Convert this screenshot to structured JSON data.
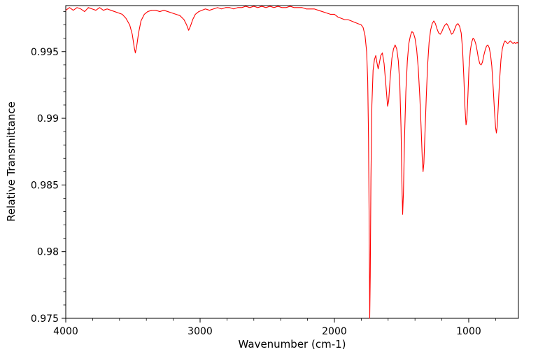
{
  "figure": {
    "background": "#ffffff",
    "spine_color": "#000000",
    "tick_label_color": "#000000"
  },
  "chart_data": {
    "type": "line",
    "title": "",
    "grid": false,
    "legend": false,
    "x_axis": {
      "label": "Wavenumber (cm-1)",
      "range": [
        4000,
        630
      ],
      "inverted": true,
      "major_ticks": [
        {
          "value": 4000,
          "label": "4000"
        },
        {
          "value": 3000,
          "label": "3000"
        },
        {
          "value": 2000,
          "label": "2000"
        },
        {
          "value": 1000,
          "label": "1000"
        }
      ],
      "minor_tick_step": 200
    },
    "y_axis": {
      "label": "Relative Transmittance",
      "range": [
        0.975,
        0.99845
      ],
      "major_ticks": [
        {
          "value": 0.975,
          "label": "0.975"
        },
        {
          "value": 0.98,
          "label": "0.98"
        },
        {
          "value": 0.985,
          "label": "0.985"
        },
        {
          "value": 0.99,
          "label": "0.99"
        },
        {
          "value": 0.995,
          "label": "0.995"
        }
      ],
      "minor_tick_step": 0.001
    },
    "series": [
      {
        "name": "IR spectrum",
        "color": "#ff0000",
        "line_width": 1.1,
        "points": [
          [
            4000,
            0.9981
          ],
          [
            3972,
            0.9983
          ],
          [
            3944,
            0.9981
          ],
          [
            3916,
            0.9983
          ],
          [
            3888,
            0.9982
          ],
          [
            3860,
            0.998
          ],
          [
            3832,
            0.9983
          ],
          [
            3804,
            0.9982
          ],
          [
            3776,
            0.9981
          ],
          [
            3748,
            0.9983
          ],
          [
            3720,
            0.9981
          ],
          [
            3692,
            0.9982
          ],
          [
            3664,
            0.9981
          ],
          [
            3636,
            0.998
          ],
          [
            3608,
            0.9979
          ],
          [
            3580,
            0.9978
          ],
          [
            3552,
            0.9975
          ],
          [
            3524,
            0.997
          ],
          [
            3505,
            0.9963
          ],
          [
            3490,
            0.9953
          ],
          [
            3482,
            0.9949
          ],
          [
            3472,
            0.9954
          ],
          [
            3458,
            0.9964
          ],
          [
            3440,
            0.9973
          ],
          [
            3415,
            0.9978
          ],
          [
            3390,
            0.998
          ],
          [
            3360,
            0.9981
          ],
          [
            3330,
            0.9981
          ],
          [
            3300,
            0.998
          ],
          [
            3270,
            0.9981
          ],
          [
            3240,
            0.998
          ],
          [
            3210,
            0.9979
          ],
          [
            3180,
            0.9978
          ],
          [
            3150,
            0.9977
          ],
          [
            3120,
            0.9974
          ],
          [
            3100,
            0.997
          ],
          [
            3085,
            0.9966
          ],
          [
            3072,
            0.9969
          ],
          [
            3055,
            0.9974
          ],
          [
            3035,
            0.9978
          ],
          [
            3010,
            0.998
          ],
          [
            2985,
            0.9981
          ],
          [
            2960,
            0.9982
          ],
          [
            2930,
            0.9981
          ],
          [
            2900,
            0.9982
          ],
          [
            2870,
            0.9983
          ],
          [
            2840,
            0.9982
          ],
          [
            2810,
            0.9983
          ],
          [
            2780,
            0.9983
          ],
          [
            2750,
            0.9982
          ],
          [
            2720,
            0.9983
          ],
          [
            2690,
            0.9983
          ],
          [
            2660,
            0.9984
          ],
          [
            2630,
            0.9983
          ],
          [
            2600,
            0.9984
          ],
          [
            2570,
            0.9983
          ],
          [
            2540,
            0.9984
          ],
          [
            2510,
            0.9983
          ],
          [
            2480,
            0.9984
          ],
          [
            2450,
            0.9983
          ],
          [
            2420,
            0.9984
          ],
          [
            2390,
            0.9983
          ],
          [
            2360,
            0.9983
          ],
          [
            2330,
            0.9984
          ],
          [
            2300,
            0.9983
          ],
          [
            2270,
            0.9983
          ],
          [
            2240,
            0.9983
          ],
          [
            2210,
            0.9982
          ],
          [
            2180,
            0.9982
          ],
          [
            2150,
            0.9982
          ],
          [
            2120,
            0.9981
          ],
          [
            2090,
            0.998
          ],
          [
            2060,
            0.9979
          ],
          [
            2030,
            0.9978
          ],
          [
            2000,
            0.9978
          ],
          [
            1975,
            0.9976
          ],
          [
            1950,
            0.9975
          ],
          [
            1925,
            0.9974
          ],
          [
            1900,
            0.9974
          ],
          [
            1875,
            0.9973
          ],
          [
            1850,
            0.9972
          ],
          [
            1825,
            0.9971
          ],
          [
            1800,
            0.997
          ],
          [
            1786,
            0.9968
          ],
          [
            1772,
            0.9962
          ],
          [
            1760,
            0.995
          ],
          [
            1752,
            0.9928
          ],
          [
            1746,
            0.9885
          ],
          [
            1741,
            0.982
          ],
          [
            1737,
            0.975
          ],
          [
            1733,
            0.9782
          ],
          [
            1728,
            0.9855
          ],
          [
            1721,
            0.991
          ],
          [
            1712,
            0.9936
          ],
          [
            1702,
            0.9944
          ],
          [
            1692,
            0.9947
          ],
          [
            1682,
            0.9941
          ],
          [
            1674,
            0.9937
          ],
          [
            1666,
            0.9941
          ],
          [
            1655,
            0.9947
          ],
          [
            1643,
            0.9949
          ],
          [
            1630,
            0.9941
          ],
          [
            1616,
            0.9924
          ],
          [
            1604,
            0.9909
          ],
          [
            1596,
            0.9913
          ],
          [
            1585,
            0.993
          ],
          [
            1572,
            0.9945
          ],
          [
            1560,
            0.9952
          ],
          [
            1548,
            0.9955
          ],
          [
            1536,
            0.9952
          ],
          [
            1524,
            0.9943
          ],
          [
            1513,
            0.9925
          ],
          [
            1504,
            0.9893
          ],
          [
            1497,
            0.985
          ],
          [
            1492,
            0.9828
          ],
          [
            1486,
            0.9844
          ],
          [
            1478,
            0.9885
          ],
          [
            1468,
            0.992
          ],
          [
            1457,
            0.9943
          ],
          [
            1446,
            0.9956
          ],
          [
            1434,
            0.9962
          ],
          [
            1423,
            0.9965
          ],
          [
            1412,
            0.9964
          ],
          [
            1400,
            0.996
          ],
          [
            1388,
            0.9952
          ],
          [
            1376,
            0.9938
          ],
          [
            1364,
            0.9916
          ],
          [
            1354,
            0.9892
          ],
          [
            1346,
            0.987
          ],
          [
            1340,
            0.986
          ],
          [
            1334,
            0.9866
          ],
          [
            1326,
            0.9888
          ],
          [
            1316,
            0.9916
          ],
          [
            1306,
            0.994
          ],
          [
            1295,
            0.9957
          ],
          [
            1284,
            0.9966
          ],
          [
            1272,
            0.9971
          ],
          [
            1260,
            0.9973
          ],
          [
            1248,
            0.9971
          ],
          [
            1236,
            0.9967
          ],
          [
            1224,
            0.9964
          ],
          [
            1212,
            0.9963
          ],
          [
            1200,
            0.9965
          ],
          [
            1188,
            0.9968
          ],
          [
            1176,
            0.997
          ],
          [
            1164,
            0.9971
          ],
          [
            1152,
            0.9969
          ],
          [
            1140,
            0.9966
          ],
          [
            1128,
            0.9963
          ],
          [
            1116,
            0.9964
          ],
          [
            1104,
            0.9967
          ],
          [
            1092,
            0.997
          ],
          [
            1080,
            0.9971
          ],
          [
            1068,
            0.9969
          ],
          [
            1056,
            0.9964
          ],
          [
            1046,
            0.9952
          ],
          [
            1036,
            0.993
          ],
          [
            1028,
            0.9908
          ],
          [
            1020,
            0.9895
          ],
          [
            1014,
            0.9899
          ],
          [
            1006,
            0.9917
          ],
          [
            998,
            0.9938
          ],
          [
            988,
            0.9951
          ],
          [
            978,
            0.9957
          ],
          [
            968,
            0.996
          ],
          [
            958,
            0.9959
          ],
          [
            948,
            0.9956
          ],
          [
            938,
            0.9951
          ],
          [
            928,
            0.9945
          ],
          [
            918,
            0.9941
          ],
          [
            908,
            0.994
          ],
          [
            898,
            0.9942
          ],
          [
            888,
            0.9947
          ],
          [
            878,
            0.9951
          ],
          [
            868,
            0.9954
          ],
          [
            858,
            0.9955
          ],
          [
            848,
            0.9953
          ],
          [
            838,
            0.9948
          ],
          [
            828,
            0.9939
          ],
          [
            818,
            0.9923
          ],
          [
            808,
            0.9905
          ],
          [
            800,
            0.9893
          ],
          [
            794,
            0.9889
          ],
          [
            788,
            0.9894
          ],
          [
            780,
            0.9909
          ],
          [
            770,
            0.9929
          ],
          [
            760,
            0.9944
          ],
          [
            750,
            0.9952
          ],
          [
            740,
            0.9956
          ],
          [
            730,
            0.9958
          ],
          [
            720,
            0.9957
          ],
          [
            710,
            0.9956
          ],
          [
            700,
            0.9957
          ],
          [
            690,
            0.9958
          ],
          [
            680,
            0.9957
          ],
          [
            670,
            0.9956
          ],
          [
            660,
            0.9957
          ],
          [
            650,
            0.9956
          ],
          [
            640,
            0.9957
          ],
          [
            630,
            0.9956
          ]
        ]
      }
    ]
  }
}
